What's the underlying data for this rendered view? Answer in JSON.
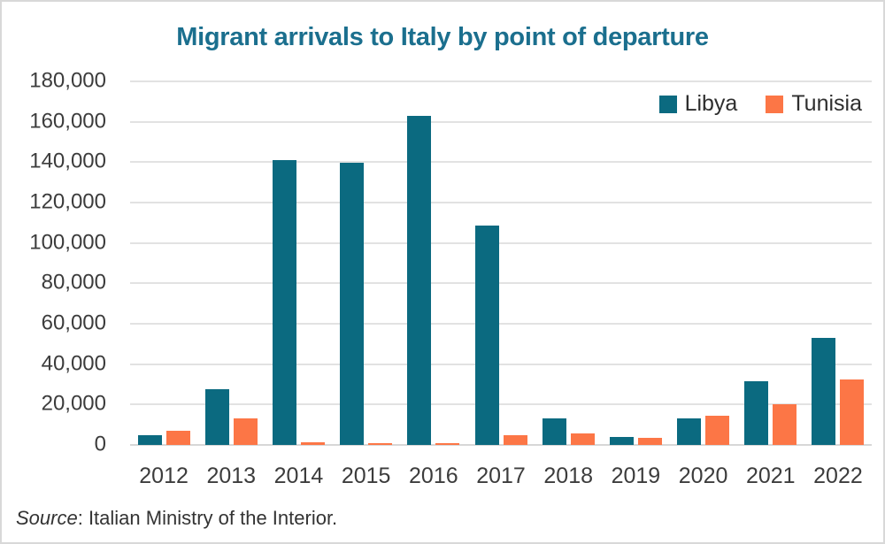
{
  "chart_data": {
    "type": "bar",
    "title": "Migrant arrivals to Italy by point of departure",
    "categories": [
      "2012",
      "2013",
      "2014",
      "2015",
      "2016",
      "2017",
      "2018",
      "2019",
      "2020",
      "2021",
      "2022"
    ],
    "series": [
      {
        "name": "Libya",
        "color": "#0b6a80",
        "values": [
          5000,
          27500,
          141000,
          139500,
          163000,
          108500,
          13000,
          4000,
          13000,
          31500,
          53000
        ]
      },
      {
        "name": "Tunisia",
        "color": "#fc7646",
        "values": [
          7000,
          13000,
          1300,
          800,
          1000,
          5000,
          5500,
          3500,
          14500,
          20000,
          32500
        ]
      }
    ],
    "y_axis": {
      "min": 0,
      "max": 180000,
      "tick_step": 20000
    },
    "grid": "horizontal-only",
    "legend_position": "top-right"
  },
  "title_color": "#1b6f8e",
  "source": {
    "label": "Source",
    "text": ": Italian Ministry of the Interior."
  }
}
